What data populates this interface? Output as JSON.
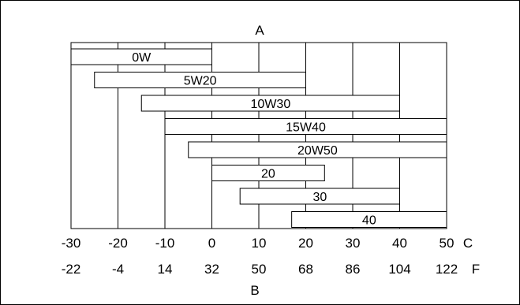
{
  "chart_data": {
    "type": "bar",
    "orientation": "horizontal-range",
    "title": "A",
    "xlabel": "B",
    "celsius_unit": "C",
    "fahrenheit_unit": "F",
    "xlim": [
      -30,
      50
    ],
    "celsius_ticks": [
      "-30",
      "-20",
      "-10",
      "0",
      "10",
      "20",
      "30",
      "40",
      "50"
    ],
    "fahrenheit_ticks": [
      "-22",
      "-4",
      "14",
      "32",
      "50",
      "68",
      "86",
      "104",
      "122"
    ],
    "grid": true,
    "bars": [
      {
        "label": "0W",
        "start": -30,
        "end": 0
      },
      {
        "label": "5W20",
        "start": -25,
        "end": 20
      },
      {
        "label": "10W30",
        "start": -15,
        "end": 40
      },
      {
        "label": "15W40",
        "start": -10,
        "end": 50
      },
      {
        "label": "20W50",
        "start": -5,
        "end": 50
      },
      {
        "label": "20",
        "start": 0,
        "end": 24
      },
      {
        "label": "30",
        "start": 6,
        "end": 40
      },
      {
        "label": "40",
        "start": 17,
        "end": 50
      }
    ],
    "colors": {
      "line": "#000000",
      "fill": "#ffffff"
    }
  }
}
